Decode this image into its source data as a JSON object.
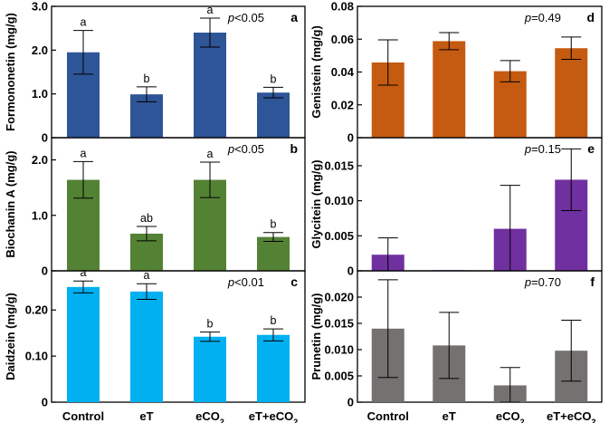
{
  "categories": [
    "Control",
    "eT",
    "eCO2",
    "eT+eCO2"
  ],
  "chart_data": [
    {
      "type": "bar",
      "panel": "a",
      "color": "#2e5597",
      "ylabel": "Formononetin (mg/g)",
      "ylim": [
        0,
        3.0
      ],
      "yticks": [
        0,
        1.0,
        2.0,
        3.0
      ],
      "ytick_labels": [
        "0",
        "1.0",
        "2.0",
        "3.0"
      ],
      "values": [
        1.95,
        0.99,
        2.4,
        1.03
      ],
      "errors": [
        0.5,
        0.17,
        0.33,
        0.12
      ],
      "letters": [
        "a",
        "b",
        "a",
        "b"
      ],
      "p_prefix": "p",
      "p_text": "<0.05"
    },
    {
      "type": "bar",
      "panel": "b",
      "color": "#548235",
      "ylabel": "Biochanin A (mg/g)",
      "ylim": [
        0,
        2.4
      ],
      "yticks": [
        0,
        1.0,
        2.0
      ],
      "ytick_labels": [
        "0",
        "1.0",
        "2.0"
      ],
      "values": [
        1.64,
        0.67,
        1.64,
        0.61
      ],
      "errors": [
        0.33,
        0.13,
        0.32,
        0.08
      ],
      "letters": [
        "a",
        "ab",
        "a",
        "b"
      ],
      "p_prefix": "p",
      "p_text": "<0.05"
    },
    {
      "type": "bar",
      "panel": "c",
      "color": "#00b0f0",
      "ylabel": "Daidzein  (mg/g)",
      "ylim": [
        0,
        0.285
      ],
      "yticks": [
        0,
        0.1,
        0.2
      ],
      "ytick_labels": [
        "0",
        "0.10",
        "0.20"
      ],
      "values": [
        0.25,
        0.24,
        0.142,
        0.146
      ],
      "errors": [
        0.013,
        0.017,
        0.01,
        0.013
      ],
      "letters": [
        "a",
        "a",
        "b",
        "b"
      ],
      "p_prefix": "p",
      "p_text": "<0.01"
    },
    {
      "type": "bar",
      "panel": "d",
      "color": "#c55a11",
      "ylabel": "Genistein (mg/g)",
      "ylim": [
        0,
        0.08
      ],
      "yticks": [
        0,
        0.02,
        0.04,
        0.06,
        0.08
      ],
      "ytick_labels": [
        "0",
        "0.02",
        "0.04",
        "0.06",
        "0.08"
      ],
      "values": [
        0.0458,
        0.0588,
        0.0405,
        0.0545
      ],
      "errors": [
        0.0138,
        0.0052,
        0.0065,
        0.0068
      ],
      "letters": [
        "",
        "",
        "",
        ""
      ],
      "p_prefix": "p",
      "p_text": "=0.49"
    },
    {
      "type": "bar",
      "panel": "e",
      "color": "#7030a0",
      "ylabel": "Glycitein (mg/g)",
      "ylim": [
        0,
        0.019
      ],
      "yticks": [
        0,
        0.005,
        0.01,
        0.015
      ],
      "ytick_labels": [
        "0",
        "0.005",
        "0.010",
        "0.015"
      ],
      "values": [
        0.0023,
        0.0001,
        0.006,
        0.013
      ],
      "errors": [
        0.0024,
        0,
        0.0062,
        0.0044
      ],
      "letters": [
        "",
        "",
        "",
        ""
      ],
      "p_prefix": "p",
      "p_text": "=0.15"
    },
    {
      "type": "bar",
      "panel": "f",
      "color": "#767171",
      "ylabel": "Prunetin (mg/g)",
      "ylim": [
        0,
        0.025
      ],
      "yticks": [
        0,
        0.005,
        0.01,
        0.015,
        0.02
      ],
      "ytick_labels": [
        "0",
        "0.005",
        "0.010",
        "0.015",
        "0.020"
      ],
      "values": [
        0.014,
        0.0108,
        0.0032,
        0.0098
      ],
      "errors": [
        0.0093,
        0.0063,
        0.0034,
        0.0058
      ],
      "letters": [
        "",
        "",
        "",
        ""
      ],
      "p_prefix": "p",
      "p_text": "=0.70"
    }
  ]
}
